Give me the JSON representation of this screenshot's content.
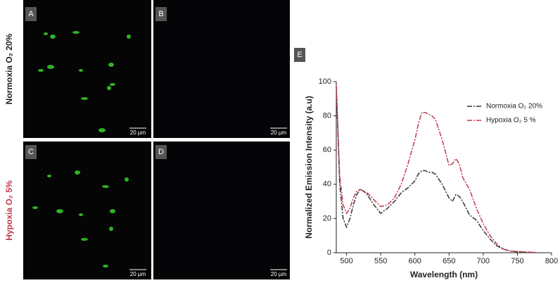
{
  "rows": [
    "Normoxia O₂ 20%",
    "Hypoxia O₂ 5%"
  ],
  "panels": [
    {
      "label": "A",
      "scale_bar": "20 µm"
    },
    {
      "label": "B",
      "scale_bar": "20 µm"
    },
    {
      "label": "C",
      "scale_bar": "20 µm"
    },
    {
      "label": "D",
      "scale_bar": "20 µm"
    }
  ],
  "chart_label": "E",
  "chart_data": {
    "type": "line",
    "x_label": "Wavelength (nm)",
    "y_label": "Normalized Emission Intensity (a.u)",
    "x": [
      485,
      490,
      495,
      500,
      505,
      510,
      515,
      520,
      525,
      530,
      540,
      550,
      560,
      570,
      580,
      590,
      600,
      605,
      610,
      615,
      620,
      625,
      630,
      640,
      650,
      655,
      660,
      665,
      670,
      680,
      690,
      700,
      710,
      720,
      730,
      740,
      750,
      760,
      770,
      780
    ],
    "series": [
      {
        "name": "Normoxia O₂ 20%",
        "color": "#333333",
        "values": [
          97,
          40,
          20,
          15,
          20,
          28,
          34,
          37,
          36,
          34,
          28,
          23,
          26,
          30,
          35,
          38,
          42,
          46,
          48,
          48,
          47,
          47,
          46,
          40,
          32,
          30,
          34,
          33,
          30,
          22,
          19,
          13,
          8,
          4,
          2,
          1,
          0.5,
          0.3,
          0.2,
          0
        ]
      },
      {
        "name": "Hypoxia O₂ 5 %",
        "color": "#c0394b",
        "values": [
          98,
          45,
          28,
          23,
          26,
          32,
          36,
          37,
          36,
          35,
          31,
          27,
          28,
          32,
          40,
          52,
          66,
          75,
          82,
          82,
          81,
          80,
          78,
          66,
          51,
          52,
          55,
          52,
          44,
          37,
          26,
          17,
          10,
          5,
          2,
          1,
          0.8,
          0.5,
          0.3,
          0
        ]
      }
    ],
    "xlim": [
      485,
      800
    ],
    "ylim": [
      0,
      100
    ],
    "xticks": [
      500,
      550,
      600,
      650,
      700,
      750,
      800
    ],
    "yticks": [
      0,
      20,
      40,
      60,
      80,
      100
    ],
    "legend": "upper right"
  }
}
